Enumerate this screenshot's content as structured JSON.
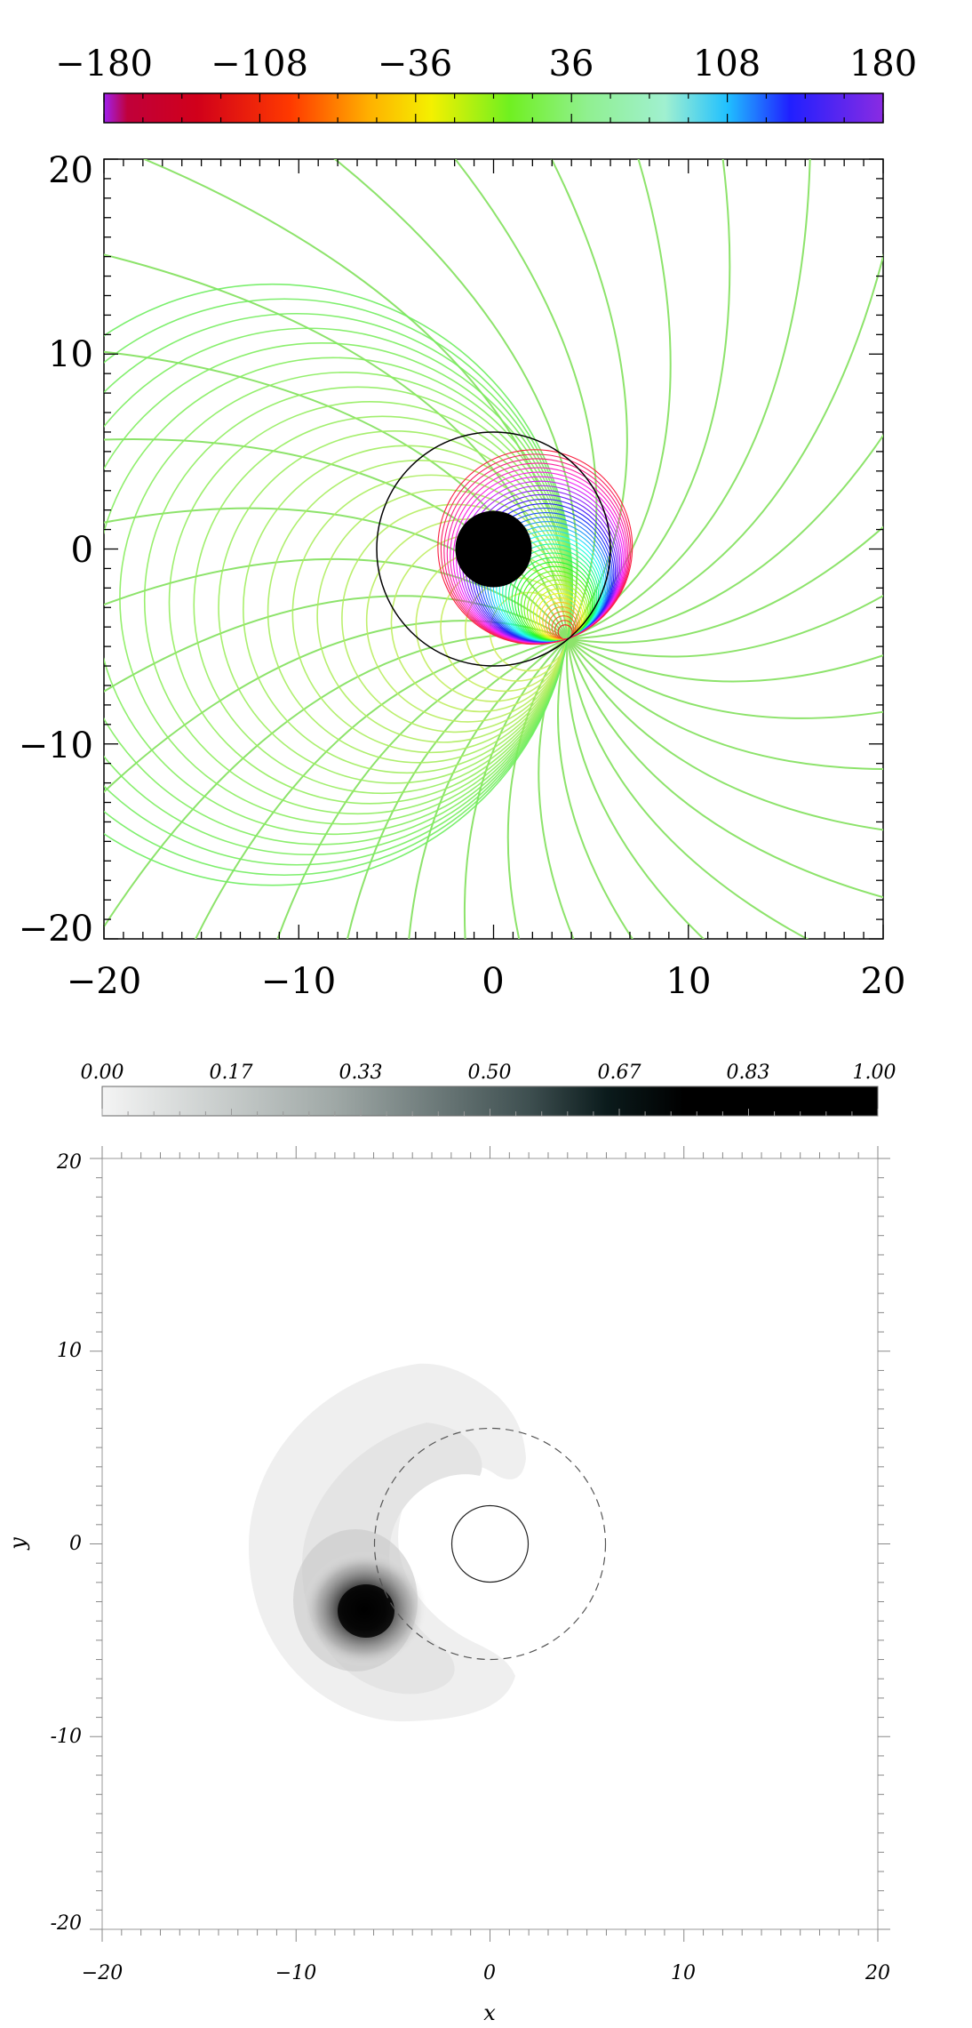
{
  "chart_data": [
    {
      "type": "contour",
      "colorbar": {
        "ticks": [
          "−180",
          "−108",
          "−36",
          "36",
          "108",
          "180"
        ],
        "colormap": "rainbow",
        "range": [
          -180,
          180
        ]
      },
      "xlim": [
        -20,
        20
      ],
      "ylim": [
        -20,
        20
      ],
      "x_ticks": [
        "−20",
        "−10",
        "0",
        "10",
        "20"
      ],
      "y_ticks": [
        "20",
        "10",
        "0",
        "−10",
        "−20"
      ],
      "circles": [
        {
          "center": [
            0,
            0
          ],
          "radius": 6,
          "style": "solid outline"
        },
        {
          "center": [
            0,
            0
          ],
          "radius": 2,
          "style": "filled black"
        }
      ],
      "convergence_point": [
        3.8,
        -4.6
      ],
      "contour_color_dominant": "#8de36b"
    },
    {
      "type": "heatmap",
      "colorbar": {
        "ticks": [
          "0.00",
          "0.17",
          "0.33",
          "0.50",
          "0.67",
          "0.83",
          "1.00"
        ],
        "colormap": "gray-inverted",
        "range": [
          0,
          1
        ]
      },
      "xlabel": "x",
      "ylabel": "y",
      "xlim": [
        -20,
        20
      ],
      "ylim": [
        -20,
        20
      ],
      "x_ticks": [
        "−20",
        "−10",
        "0",
        "10",
        "20"
      ],
      "y_ticks": [
        "20",
        "10",
        "0",
        "-10",
        "-20"
      ],
      "circles": [
        {
          "center": [
            0,
            0
          ],
          "radius": 6,
          "style": "dashed"
        },
        {
          "center": [
            0,
            0
          ],
          "radius": 2,
          "style": "solid"
        }
      ],
      "peak": {
        "x": -6,
        "y": -3.5,
        "value": 1.0
      }
    }
  ]
}
